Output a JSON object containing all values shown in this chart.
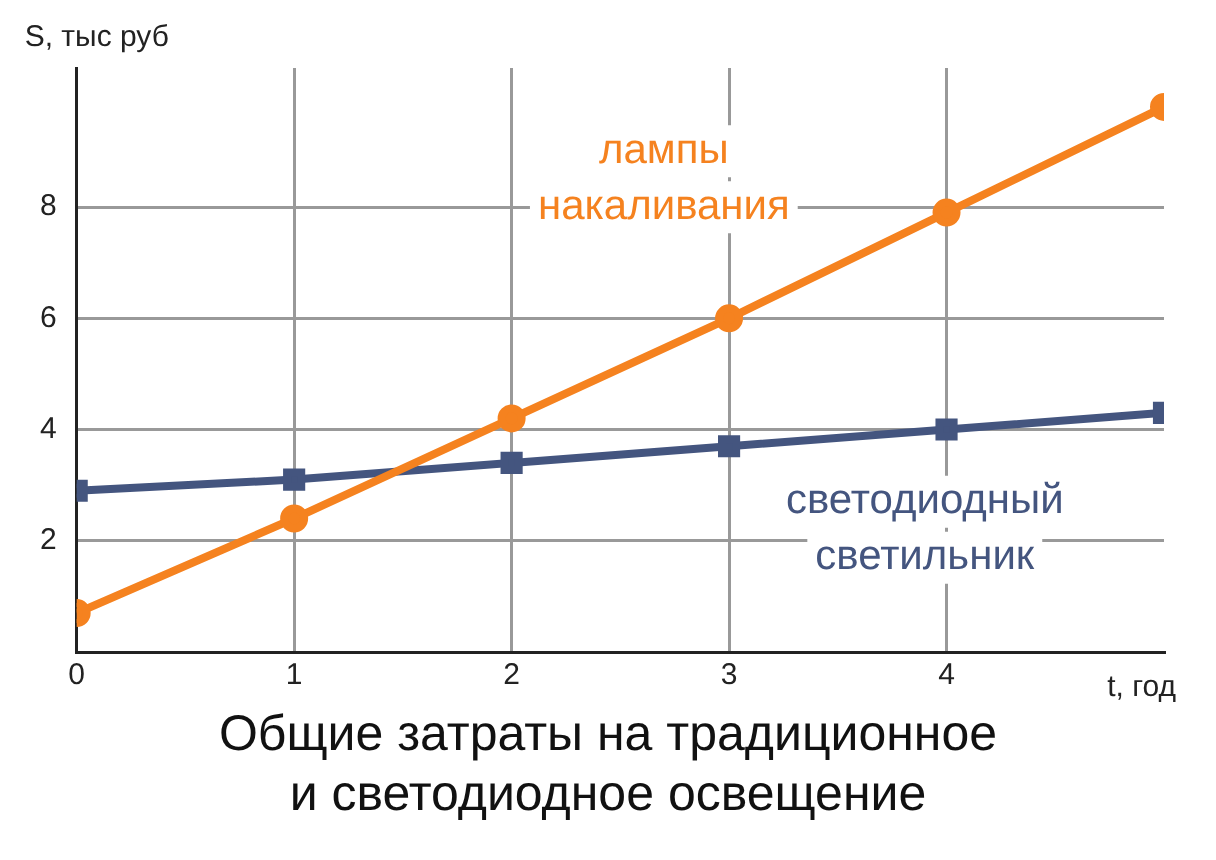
{
  "chart_data": {
    "type": "line",
    "title": "Общие затраты на традиционное\nи светодиодное освещение",
    "xlabel": "t, год",
    "ylabel": "S, тыс руб",
    "x": [
      0,
      1,
      2,
      3,
      4,
      5
    ],
    "series": [
      {
        "name": "лампы\nнакаливания",
        "color": "#f5821f",
        "marker": "circle",
        "values": [
          0.7,
          2.4,
          4.2,
          6.0,
          7.9,
          9.8
        ]
      },
      {
        "name": "светодиодный\nсветильник",
        "color": "#44557f",
        "marker": "square",
        "values": [
          2.9,
          3.1,
          3.4,
          3.7,
          4.0,
          4.3
        ]
      }
    ],
    "xlim": [
      0,
      5
    ],
    "xticks": [
      0,
      1,
      2,
      3,
      4
    ],
    "ylim": [
      0,
      10.5
    ],
    "yticks": [
      2,
      4,
      6,
      8
    ],
    "grid": true,
    "legend": false,
    "line_style": "solid"
  }
}
